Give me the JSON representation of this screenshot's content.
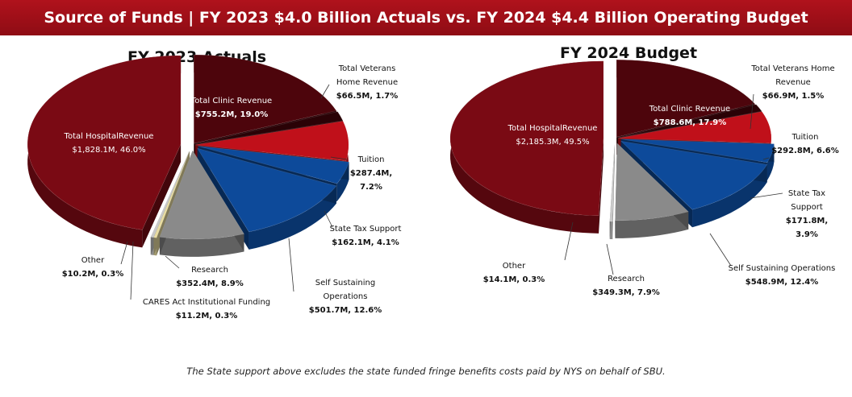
{
  "banner_title": "Source of Funds | FY 2023 $4.0 Billion Actuals vs. FY 2024 $4.4 Billion Operating Budget",
  "footnote": "The State support above excludes the state funded fringe benefits costs paid by NYS on behalf of SBU.",
  "colors": {
    "hospital": "#7a0a14",
    "clinic": "#4d050c",
    "veterans": "#2a0206",
    "tuition": "#c0101a",
    "state_tax": "#0d4a9a",
    "self_sustaining": "#0d4a9a",
    "research": "#8a8a8a",
    "cares": "#e8dca0",
    "other": "#c8c8c8"
  },
  "chart_data": [
    {
      "type": "pie",
      "title": "FY 2023 Actuals",
      "slices": [
        {
          "name": "Total Hospital Revenue",
          "label": "Total HospitalRevenue",
          "value_label": "$1,828.1M, 46.0%",
          "value_musd": 1828.1,
          "percent": 46.0
        },
        {
          "name": "Total Clinic Revenue",
          "label": "Total Clinic Revenue",
          "value_label": "$755.2M, 19.0%",
          "value_musd": 755.2,
          "percent": 19.0
        },
        {
          "name": "Total Veterans Home Revenue",
          "label": "Total Veterans Home Revenue",
          "value_label": "$66.5M, 1.7%",
          "value_musd": 66.5,
          "percent": 1.7
        },
        {
          "name": "Tuition",
          "label": "Tuition",
          "value_label": "$287.4M, 7.2%",
          "value_musd": 287.4,
          "percent": 7.2
        },
        {
          "name": "State Tax Support",
          "label": "State Tax Support",
          "value_label": "$162.1M, 4.1%",
          "value_musd": 162.1,
          "percent": 4.1
        },
        {
          "name": "Self Sustaining Operations",
          "label": "Self Sustaining Operations",
          "value_label": "$501.7M, 12.6%",
          "value_musd": 501.7,
          "percent": 12.6
        },
        {
          "name": "Research",
          "label": "Research",
          "value_label": "$352.4M, 8.9%",
          "value_musd": 352.4,
          "percent": 8.9
        },
        {
          "name": "CARES Act Institutional Funding",
          "label": "CARES Act Institutional Funding",
          "value_label": "$11.2M, 0.3%",
          "value_musd": 11.2,
          "percent": 0.3
        },
        {
          "name": "Other",
          "label": "Other",
          "value_label": "$10.2M, 0.3%",
          "value_musd": 10.2,
          "percent": 0.3
        }
      ]
    },
    {
      "type": "pie",
      "title": "FY 2024 Budget",
      "slices": [
        {
          "name": "Total Hospital Revenue",
          "label": "Total HospitalRevenue",
          "value_label": "$2,185.3M, 49.5%",
          "value_musd": 2185.3,
          "percent": 49.5
        },
        {
          "name": "Total Clinic Revenue",
          "label": "Total Clinic Revenue",
          "value_label": "$788.6M, 17.9%",
          "value_musd": 788.6,
          "percent": 17.9
        },
        {
          "name": "Total Veterans Home Revenue",
          "label": "Total Veterans Home Revenue",
          "value_label": "$66.9M, 1.5%",
          "value_musd": 66.9,
          "percent": 1.5
        },
        {
          "name": "Tuition",
          "label": "Tuition",
          "value_label": "$292.8M, 6.6%",
          "value_musd": 292.8,
          "percent": 6.6
        },
        {
          "name": "State Tax Support",
          "label": "State Tax Support",
          "value_label": "$171.8M, 3.9%",
          "value_musd": 171.8,
          "percent": 3.9
        },
        {
          "name": "Self Sustaining Operations",
          "label": "Self Sustaining Operations",
          "value_label": "$548.9M, 12.4%",
          "value_musd": 548.9,
          "percent": 12.4
        },
        {
          "name": "Research",
          "label": "Research",
          "value_label": "$349.3M, 7.9%",
          "value_musd": 349.3,
          "percent": 7.9
        },
        {
          "name": "Other",
          "label": "Other",
          "value_label": "$14.1M, 0.3%",
          "value_musd": 14.1,
          "percent": 0.3
        }
      ]
    }
  ]
}
